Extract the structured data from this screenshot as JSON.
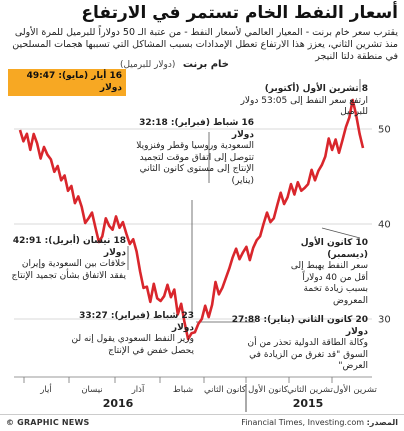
{
  "title": "أسعار النفط الخام تستمر في الارتفاع",
  "subtitle": "يقترب سعر خام برنت - المعيار العالمي لأسعار النفط - من عتبة الـ 50 دولاراً للبرميل للمرة الأولى منذ تشرين الثاني، يعزز هذا الارتفاع تعطل الإمدادات بسبب المشاكل التي تسببها هجمات المسلحين في منطقة دلتا النيجر",
  "unit_label": "خام برنت",
  "unit_sub": "(دولار للبرميل)",
  "colors": {
    "line": "#d9262c",
    "highlight_box": "#f7a823",
    "grid": "#cccccc",
    "ann_line": "#555555"
  },
  "footer": {
    "left": "© GRAPHIC NEWS",
    "source_label": "المصدر:",
    "source": "Financial Times, Investing.com"
  },
  "chart_data": {
    "type": "line",
    "yticks": [
      30,
      40,
      50
    ],
    "ylim": [
      24,
      56
    ],
    "months": [
      "تشرين الأول",
      "تشرين الثاني",
      "كانون الأول",
      "كانون الثاني",
      "شباط",
      "آذار",
      "نيسان",
      "أيار"
    ],
    "years": [
      "2015",
      "2016"
    ],
    "series": [
      {
        "values": [
          48.0,
          49.5,
          51.5,
          53.05,
          51.2,
          50.2,
          48.8,
          47.5,
          48.9,
          47.8,
          49.0,
          47.1,
          46.2,
          45.6,
          44.6,
          45.7,
          44.2,
          43.8,
          43.5,
          44.4,
          43.1,
          44.2,
          42.8,
          42.1,
          43.3,
          42.0,
          40.6,
          40.2,
          41.2,
          40.0,
          38.7,
          38.3,
          37.5,
          36.2,
          37.6,
          37.0,
          36.3,
          37.4,
          36.5,
          35.3,
          34.3,
          33.3,
          32.6,
          33.9,
          31.5,
          30.2,
          31.4,
          30.0,
          29.5,
          28.6,
          28.5,
          27.88,
          29.6,
          31.6,
          30.5,
          33.1,
          32.3,
          33.6,
          32.4,
          31.9,
          32.18,
          33.7,
          31.8,
          33.4,
          33.27,
          35.0,
          37.1,
          38.4,
          37.9,
          39.0,
          40.2,
          39.6,
          40.8,
          39.4,
          39.8,
          40.6,
          38.7,
          38.1,
          39.6,
          41.2,
          40.6,
          40.1,
          41.8,
          42.91,
          42.2,
          44.0,
          43.5,
          45.1,
          44.6,
          46.1,
          45.5,
          46.8,
          47.3,
          48.1,
          46.9,
          48.5,
          49.47,
          47.8,
          49.5,
          48.7,
          49.9
        ]
      }
    ],
    "annotations": {
      "a1": {
        "date": "8 تشرين الأول (أكتوبر)",
        "text": "ارتفع سعر النفط إلى 53:05 دولار للبرميل"
      },
      "a2": {
        "date": "10 كانون الأول (ديسمبر)",
        "text": "سعر النفط يهبط إلى أقل من 40 دولاراً بسبب زيادة تخمة المعروض"
      },
      "a3": {
        "date": "20 كانون الثاني (يناير): 27:88 دولار",
        "text": "وكالة الطاقة الدولية تحذر من أن السوق \"قد تغرق من الزيادة في العرض\""
      },
      "a4": {
        "date": "16 شباط (فبراير): 32:18 دولار",
        "text": "السعودية وروسيا وقطر وفنزويلا تتوصل إلى اتفاق موقت لتجميد الإنتاج إلى مستوى كانون الثاني (يناير)"
      },
      "a5": {
        "date": "23 شباط (فبراير): 33:27 دولار",
        "text": "وزير النفط السعودي يقول إنه لن يحصل خفض في الإنتاج"
      },
      "a6": {
        "date": "18 نيسان (أبريل): 42:91 دولار",
        "text": "خلافات بين السعودية وإيران يفقد الاتفاق بشأن تجميد الإنتاج"
      },
      "a7": {
        "date": "16 أيار (مايو): 49:47 دولار"
      }
    }
  }
}
